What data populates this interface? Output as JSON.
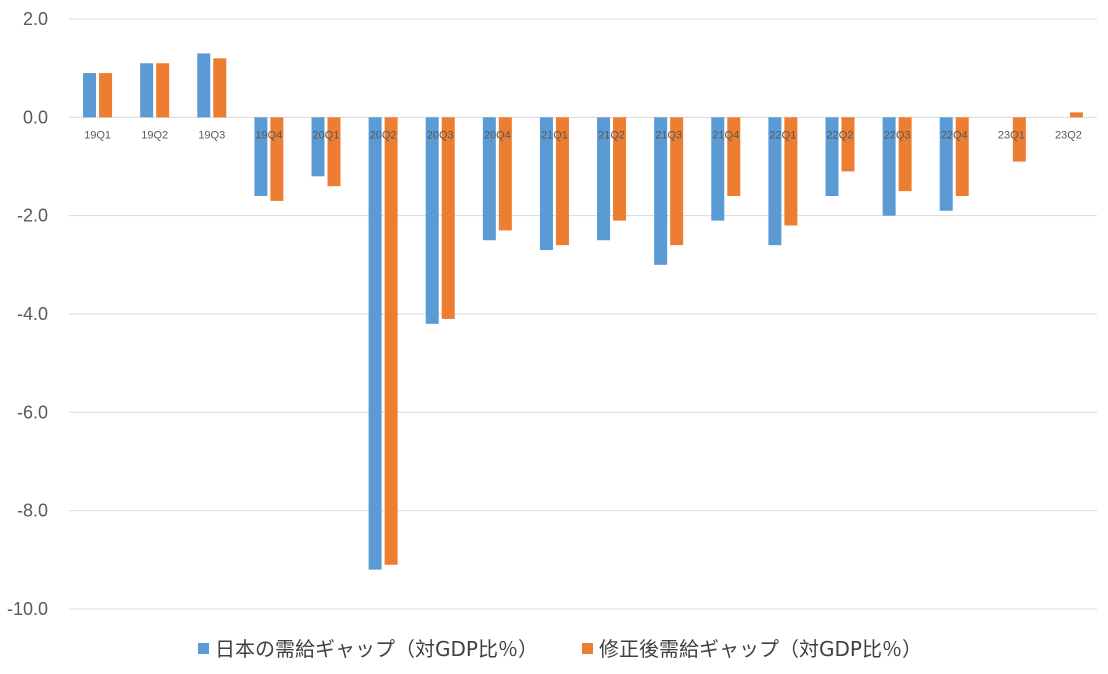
{
  "chart_data": {
    "type": "bar",
    "categories": [
      "19Q1",
      "19Q2",
      "19Q3",
      "19Q4",
      "20Q1",
      "20Q2",
      "20Q3",
      "20Q4",
      "21Q1",
      "21Q2",
      "21Q3",
      "21Q4",
      "22Q1",
      "22Q2",
      "22Q3",
      "22Q4",
      "23Q1",
      "23Q2"
    ],
    "series": [
      {
        "name": "日本の需給ギャップ（対GDP比％）",
        "color": "#5b9bd5",
        "values": [
          0.9,
          1.1,
          1.3,
          -1.6,
          -1.2,
          -9.2,
          -4.2,
          -2.5,
          -2.7,
          -2.5,
          -3.0,
          -2.1,
          -2.6,
          -1.6,
          -2.0,
          -1.9,
          null,
          null
        ]
      },
      {
        "name": "修正後需給ギャップ（対GDP比％）",
        "color": "#ed7d31",
        "values": [
          0.9,
          1.1,
          1.2,
          -1.7,
          -1.4,
          -9.1,
          -4.1,
          -2.3,
          -2.6,
          -2.1,
          -2.6,
          -1.6,
          -2.2,
          -1.1,
          -1.5,
          -1.6,
          -0.9,
          0.1
        ]
      }
    ],
    "ylim": [
      -10,
      2
    ],
    "yticks": [
      "2.0",
      "0.0",
      "-2.0",
      "-4.0",
      "-6.0",
      "-8.0",
      "-10.0"
    ],
    "ytick_values": [
      2,
      0,
      -2,
      -4,
      -6,
      -8,
      -10
    ],
    "grid": true,
    "legend_position": "bottom",
    "title": "",
    "xlabel": "",
    "ylabel": ""
  }
}
